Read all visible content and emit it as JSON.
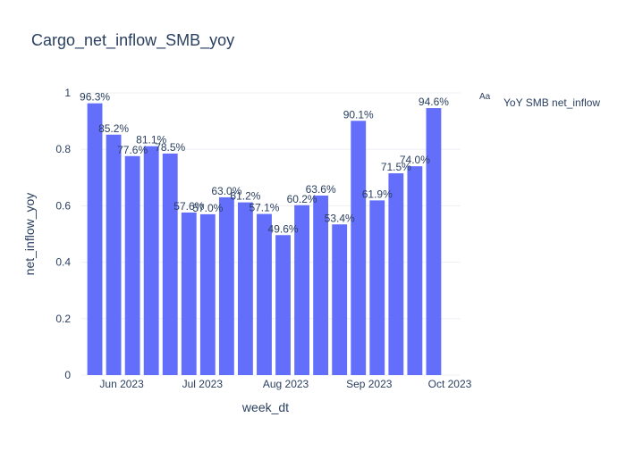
{
  "chart_data": {
    "type": "bar",
    "title": "Cargo_net_inflow_SMB_yoy",
    "xlabel": "week_dt",
    "ylabel": "net_inflow_yoy",
    "ylim": [
      0,
      1
    ],
    "y_ticks": [
      "0",
      "0.2",
      "0.4",
      "0.6",
      "0.8",
      "1"
    ],
    "x_ticks": [
      "Jun 2023",
      "Jul 2023",
      "Aug 2023",
      "Sep 2023",
      "Oct 2023"
    ],
    "x_range": [
      "2023-05-17",
      "2023-10-05"
    ],
    "grid": true,
    "legend_position": "top-right",
    "legend_symbol": "Aa",
    "series": [
      {
        "name": "YoY SMB net_inflow",
        "color": "#636efa",
        "x": [
          "2023-05-22",
          "2023-05-29",
          "2023-06-05",
          "2023-06-12",
          "2023-06-19",
          "2023-06-26",
          "2023-07-03",
          "2023-07-10",
          "2023-07-17",
          "2023-07-24",
          "2023-07-31",
          "2023-08-07",
          "2023-08-14",
          "2023-08-21",
          "2023-08-28",
          "2023-09-04",
          "2023-09-11",
          "2023-09-18",
          "2023-09-25"
        ],
        "values": [
          0.963,
          0.852,
          0.776,
          0.811,
          0.785,
          0.576,
          0.57,
          0.63,
          0.612,
          0.571,
          0.496,
          0.602,
          0.636,
          0.534,
          0.901,
          0.619,
          0.715,
          0.74,
          0.946
        ],
        "labels": [
          "96.3%",
          "85.2%",
          "77.6%",
          "81.1%",
          "78.5%",
          "57.6%",
          "57.0%",
          "63.0%",
          "61.2%",
          "57.1%",
          "49.6%",
          "60.2%",
          "63.6%",
          "53.4%",
          "90.1%",
          "61.9%",
          "71.5%",
          "74.0%",
          "94.6%"
        ]
      }
    ]
  }
}
